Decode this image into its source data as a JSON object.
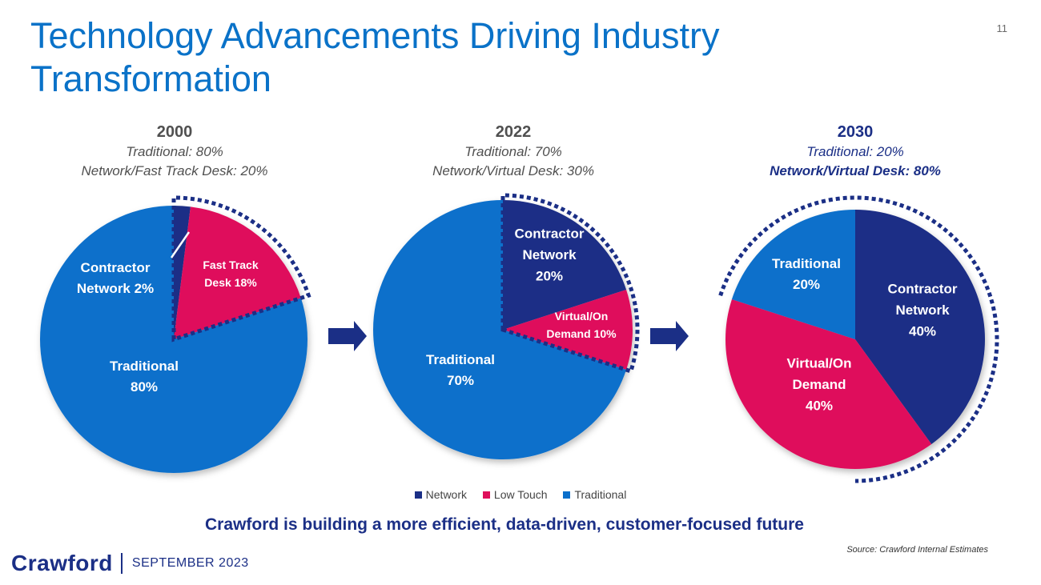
{
  "header": {
    "title": "Technology Advancements Driving Industry Transformation",
    "page_number": "11"
  },
  "columns": [
    {
      "year": "2000",
      "line1": "Traditional: 80%",
      "line2": "Network/Fast Track Desk: 20%"
    },
    {
      "year": "2022",
      "line1": "Traditional: 70%",
      "line2": "Network/Virtual Desk: 30%"
    },
    {
      "year": "2030",
      "line1": "Traditional: 20%",
      "line2": "Network/Virtual Desk: 80%"
    }
  ],
  "chart_data": [
    {
      "type": "pie",
      "title": "2000",
      "slices": [
        {
          "name": "Contractor Network",
          "value": 2,
          "category": "Network",
          "label": [
            "Contractor",
            "Network 2%"
          ]
        },
        {
          "name": "Fast Track Desk",
          "value": 18,
          "category": "Low Touch",
          "label": [
            "Fast Track",
            "Desk 18%"
          ]
        },
        {
          "name": "Traditional",
          "value": 80,
          "category": "Traditional",
          "label": [
            "Traditional",
            "80%"
          ]
        }
      ],
      "highlight": [
        "Contractor Network",
        "Fast Track Desk"
      ]
    },
    {
      "type": "pie",
      "title": "2022",
      "slices": [
        {
          "name": "Contractor Network",
          "value": 20,
          "category": "Network",
          "label": [
            "Contractor",
            "Network",
            "20%"
          ]
        },
        {
          "name": "Virtual/On Demand",
          "value": 10,
          "category": "Low Touch",
          "label": [
            "Virtual/On",
            "Demand 10%"
          ]
        },
        {
          "name": "Traditional",
          "value": 70,
          "category": "Traditional",
          "label": [
            "Traditional",
            "70%"
          ]
        }
      ],
      "highlight": [
        "Contractor Network",
        "Virtual/On Demand"
      ]
    },
    {
      "type": "pie",
      "title": "2030",
      "slices": [
        {
          "name": "Contractor Network",
          "value": 40,
          "category": "Network",
          "label": [
            "Contractor",
            "Network",
            "40%"
          ]
        },
        {
          "name": "Virtual/On Demand",
          "value": 40,
          "category": "Low Touch",
          "label": [
            "Virtual/On",
            "Demand",
            "40%"
          ]
        },
        {
          "name": "Traditional",
          "value": 20,
          "category": "Traditional",
          "label": [
            "Traditional",
            "20%"
          ]
        }
      ],
      "highlight": [
        "Contractor Network",
        "Virtual/On Demand"
      ]
    }
  ],
  "legend": [
    {
      "label": "Network",
      "color": "#1b2f86"
    },
    {
      "label": "Low Touch",
      "color": "#df0f5b"
    },
    {
      "label": "Traditional",
      "color": "#0a6fcb"
    }
  ],
  "colors": {
    "Network": "#1b2f86",
    "Low Touch": "#df0f5b",
    "Traditional": "#0a6fcb",
    "title": "#0a72c8",
    "dotted": "#1b2f86",
    "arrow": "#1b2f86"
  },
  "tagline": "Crawford is building a more efficient, data-driven, customer-focused future",
  "source": "Source: Crawford Internal Estimates",
  "footer": {
    "logo": "Crawford",
    "date": "SEPTEMBER 2023"
  }
}
